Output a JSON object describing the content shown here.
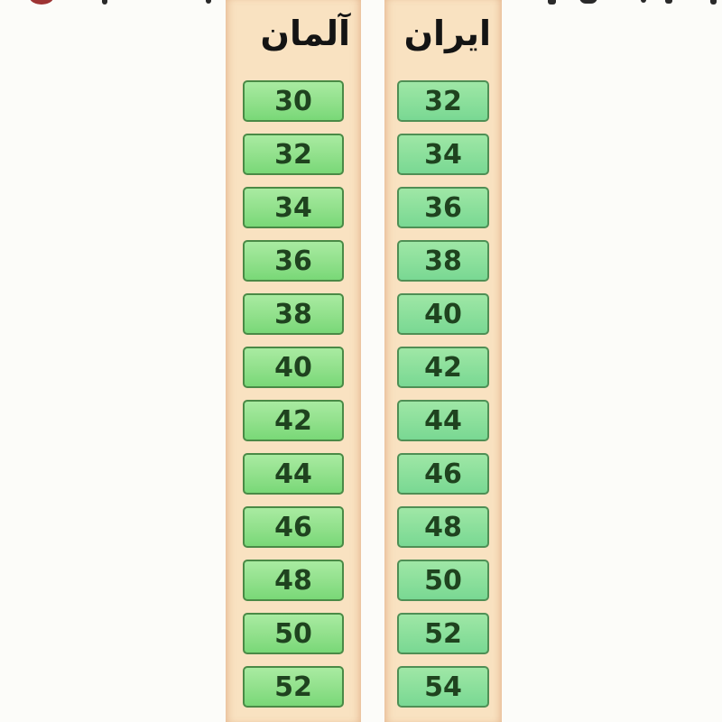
{
  "columns": [
    {
      "id": "germany",
      "header": "آلمان",
      "values": [
        "30",
        "32",
        "34",
        "36",
        "38",
        "40",
        "42",
        "44",
        "46",
        "48",
        "50",
        "52"
      ]
    },
    {
      "id": "iran",
      "header": "ايران",
      "values": [
        "32",
        "34",
        "36",
        "38",
        "40",
        "42",
        "44",
        "46",
        "48",
        "50",
        "52",
        "54"
      ]
    }
  ],
  "colors": {
    "page_background": "#fcfcf9",
    "column_background": "#f9e2c1",
    "cell_border": "#4a8a46",
    "cell_green_top": "#a9eba1",
    "cell_green_bottom": "#79d877",
    "cell_mint_top": "#9fe7a6",
    "cell_mint_bottom": "#79d893",
    "number_text": "#1f431f",
    "header_text": "#141414",
    "red_dot": "#9e3434"
  },
  "chart_data": {
    "type": "table",
    "title": "",
    "columns": [
      "آلمان",
      "ايران"
    ],
    "rows": [
      [
        30,
        32
      ],
      [
        32,
        34
      ],
      [
        34,
        36
      ],
      [
        36,
        38
      ],
      [
        38,
        40
      ],
      [
        40,
        42
      ],
      [
        42,
        44
      ],
      [
        44,
        46
      ],
      [
        46,
        48
      ],
      [
        48,
        50
      ],
      [
        50,
        52
      ],
      [
        52,
        54
      ]
    ],
    "layout_hints": {
      "direction": "rtl",
      "columns_order_on_screen": [
        "آلمان (left)",
        "ايران (right)"
      ],
      "cut_off_title_line_at_top": true
    }
  }
}
